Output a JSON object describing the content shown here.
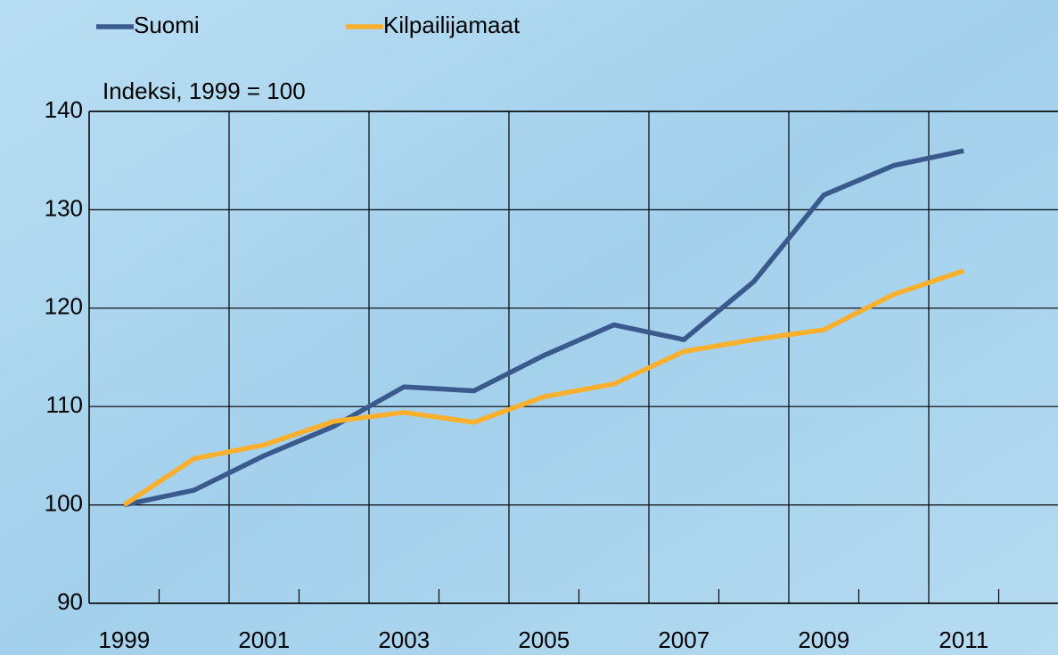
{
  "chart_data": {
    "type": "line",
    "subtitle": "Indeksi, 1999 = 100",
    "categories": [
      "1999",
      null,
      "2001",
      null,
      "2003",
      null,
      "2005",
      null,
      "2007",
      null,
      "2009",
      null,
      "2011",
      null
    ],
    "series": [
      {
        "name": "Suomi",
        "color": "#3a5a8e",
        "values": [
          100,
          101.5,
          105,
          108,
          112,
          111.6,
          115.2,
          118.3,
          116.8,
          122.7,
          131.5,
          134.5,
          136,
          null
        ]
      },
      {
        "name": "Kilpailijamaat",
        "color": "#fbb02d",
        "values": [
          100,
          104.7,
          106.1,
          108.5,
          109.4,
          108.4,
          111,
          112.3,
          115.6,
          116.8,
          117.8,
          121.4,
          123.8,
          null
        ]
      }
    ],
    "ylim": [
      90,
      140
    ],
    "yticks": [
      90,
      100,
      110,
      120,
      130,
      140
    ],
    "grid": true,
    "legend": "top"
  }
}
